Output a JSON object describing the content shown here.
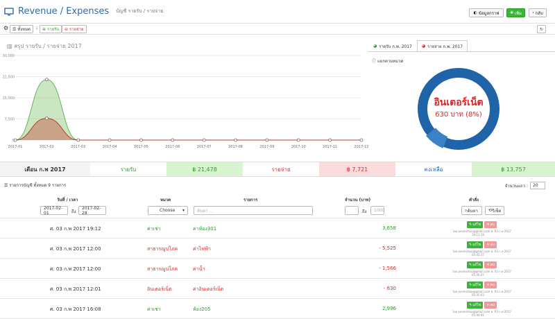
{
  "header": {
    "title": "Revenue / Expenses",
    "breadcrumb": "บัญชี รายรับ / รายจ่าย",
    "btn_data": "ข้อมูลกราฟ",
    "btn_add": "เพิ่ม",
    "btn_back": "กลับ"
  },
  "toolbar": {
    "all_label": "ทั้งหมด",
    "income_label": "รายรับ",
    "expense_label": "รายจ่าย"
  },
  "chart_title": "สรุป รายรับ / รายจ่าย 2017",
  "chart_data": {
    "type": "area",
    "x": [
      "2017-01",
      "2017-02",
      "2017-03",
      "2017-04",
      "2017-05",
      "2017-06",
      "2017-07",
      "2017-08",
      "2017-09",
      "2017-10",
      "2017-11",
      "2017-12"
    ],
    "yticks": [
      "0",
      "7,500",
      "15,000",
      "22,500",
      "30,000"
    ],
    "ylim": [
      0,
      30000
    ],
    "series": [
      {
        "values": [
          0,
          21478,
          0,
          0,
          0,
          0,
          0,
          0,
          0,
          0,
          0,
          0
        ],
        "color": "#5cb85c"
      },
      {
        "values": [
          0,
          7721,
          0,
          0,
          0,
          0,
          0,
          0,
          0,
          0,
          0,
          0
        ],
        "color": "#c0392b"
      }
    ]
  },
  "right_panel": {
    "tab1": "รายรับ ก.พ. 2017",
    "tab2": "รายจ่าย ก.พ. 2017",
    "subtitle": "แยกตามหมวด",
    "donut_title": "อินเตอร์เน็ต",
    "donut_value": "630 บาท (8%)",
    "donut_fraction": 0.08
  },
  "summary": {
    "month": "เดือน ก.พ 2017",
    "income_label": "รายรับ",
    "income_value": "฿ 21,478",
    "expense_label": "รายจ่าย",
    "expense_value": "฿ 7,721",
    "balance_label": "คงเหลือ",
    "balance_value": "฿ 13,757"
  },
  "list": {
    "header": "รายการบัญชี ทั้งหมด 9 รายการ",
    "perpage_label": "จำนวนแถว :",
    "perpage_value": "20",
    "columns": {
      "date": "วันที่ / เวลา",
      "cat": "หมวด",
      "item": "รายการ",
      "amount": "จำนวน (บาท)",
      "cmd": "คำสั่ง"
    }
  },
  "filter": {
    "date_from": "2017-02-01",
    "to_label": "ถึง",
    "date_to": "2017-02-28",
    "cat_select": "Choose",
    "search_placeholder": "ค้นหา ...",
    "amt_to_label": "ถึง",
    "amt_to_placeholder": "1000",
    "search_btn": "ค้นหา",
    "reset_btn": "รีเซ็ต"
  },
  "rows": [
    {
      "date": "ศ. 03 ก.พ 2017 19:12",
      "cat": "ค่าเช่า",
      "item": "ค่าห้อง301",
      "amount": "3,658",
      "type": "income",
      "user": "โดย pnomchou@gmail.com ศ. 03 ก.พ 2017",
      "time": "19:13:19"
    },
    {
      "date": "ศ. 03 ก.พ 2017 12:00",
      "cat": "สาธารณูปโภค",
      "item": "ค่าไฟฟ้า",
      "amount": "- 5,525",
      "type": "expense",
      "user": "โดย pnomchou@gmail.com ศ. 03 ก.พ 2017",
      "time": "05:45:37"
    },
    {
      "date": "ศ. 03 ก.พ 2017 12:00",
      "cat": "สาธารณูปโภค",
      "item": "ค่าน้ำ",
      "amount": "- 1,566",
      "type": "expense",
      "user": "โดย pnomchou@gmail.com ศ. 03 ก.พ 2017",
      "time": "05:45:07"
    },
    {
      "date": "ศ. 03 ก.พ 2017 12:01",
      "cat": "อินเตอร์เน็ต",
      "item": "ค่าอินเตอร์เน็ต",
      "amount": "- 630",
      "type": "expense",
      "user": "โดย pnomchou@gmail.com ศ. 03 ก.พ 2017",
      "time": "05:45:03"
    },
    {
      "date": "ศ. 03 ก.พ 2017 16:08",
      "cat": "ค่าเช่า",
      "item": "ห้อง205",
      "amount": "2,996",
      "type": "income",
      "user": "โดย pnomchou@gmail.com ศ. 03 ก.พ 2017",
      "time": "05:44:41"
    }
  ],
  "row_edit": "แก้ไข",
  "row_delete": "ลบ"
}
